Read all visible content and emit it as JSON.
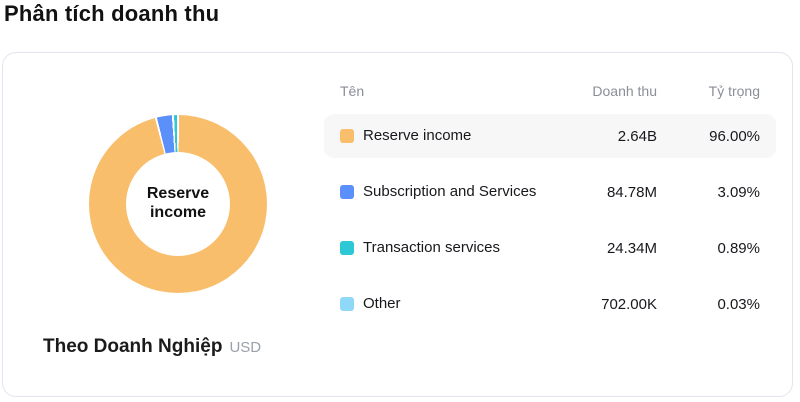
{
  "page": {
    "title": "Phân tích doanh thu"
  },
  "chart_data": {
    "type": "pie",
    "title": "Phân tích doanh thu",
    "center_label": "Reserve income",
    "legend_position": "right-table",
    "footer": {
      "label": "Theo Doanh Nghiệp",
      "currency": "USD"
    },
    "categories": [
      "Reserve income",
      "Subscription and Services",
      "Transaction services",
      "Other"
    ],
    "values_pct": [
      96.0,
      3.09,
      0.89,
      0.03
    ],
    "revenues": [
      "2.64B",
      "84.78M",
      "24.34M",
      "702.00K"
    ],
    "colors": [
      "#f9be6c",
      "#5b8ff9",
      "#2cc8d5",
      "#8fd8f8"
    ]
  },
  "table": {
    "headers": {
      "name": "Tên",
      "revenue": "Doanh thu",
      "share": "Tỷ trọng"
    },
    "rows": [
      {
        "name": "Reserve income",
        "revenue": "2.64B",
        "share": "96.00%",
        "color": "#f9be6c",
        "highlighted": true
      },
      {
        "name": "Subscription and Services",
        "revenue": "84.78M",
        "share": "3.09%",
        "color": "#5b8ff9",
        "highlighted": false
      },
      {
        "name": "Transaction services",
        "revenue": "24.34M",
        "share": "0.89%",
        "color": "#2cc8d5",
        "highlighted": false
      },
      {
        "name": "Other",
        "revenue": "702.00K",
        "share": "0.03%",
        "color": "#8fd8f8",
        "highlighted": false
      }
    ]
  }
}
